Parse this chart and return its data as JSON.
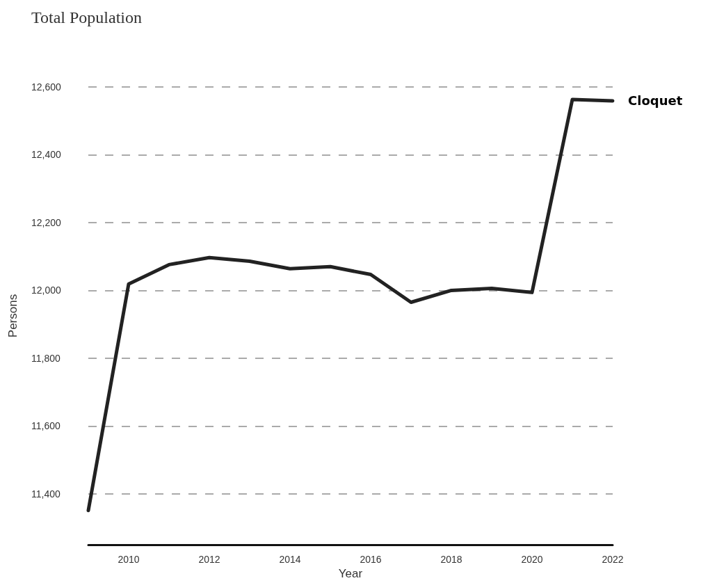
{
  "chart_data": {
    "type": "line",
    "title": "Total Population",
    "xlabel": "Year",
    "ylabel": "Persons",
    "x": [
      2009,
      2010,
      2011,
      2012,
      2013,
      2014,
      2015,
      2016,
      2017,
      2018,
      2019,
      2020,
      2021,
      2022
    ],
    "series": [
      {
        "name": "Cloquet",
        "color": "#222222",
        "values": [
          11351,
          12019,
          12076,
          12097,
          12086,
          12064,
          12070,
          12047,
          11965,
          12000,
          12006,
          11994,
          12563,
          12559
        ]
      }
    ],
    "xlim": [
      2009,
      2022
    ],
    "xticks": [
      2010,
      2012,
      2014,
      2016,
      2018,
      2020,
      2022
    ],
    "ylim": [
      11250,
      12600
    ],
    "yticks": [
      {
        "value": 11400,
        "label": "11,400"
      },
      {
        "value": 11600,
        "label": "11,600"
      },
      {
        "value": 11800,
        "label": "11,800"
      },
      {
        "value": 12000,
        "label": "12,000"
      },
      {
        "value": 12200,
        "label": "12,200"
      },
      {
        "value": 12400,
        "label": "12,400"
      },
      {
        "value": 12600,
        "label": "12,600"
      }
    ],
    "grid": "y",
    "legend": false,
    "marker": "none",
    "line_style": "solid"
  }
}
